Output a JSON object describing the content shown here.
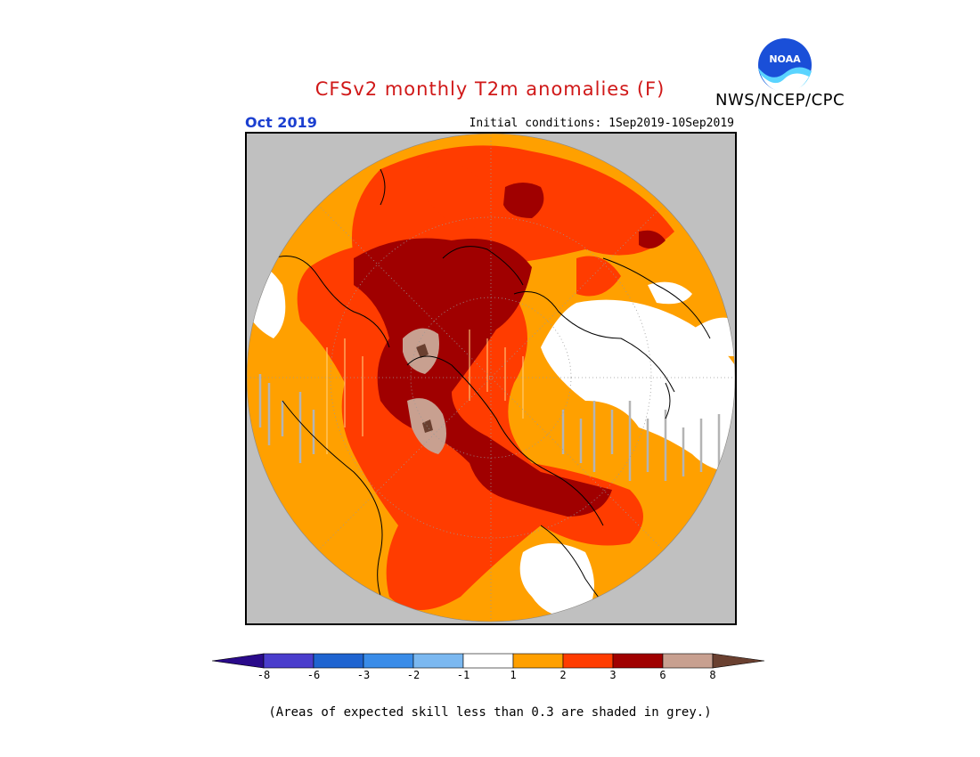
{
  "header": {
    "title": "CFSv2 monthly T2m anomalies (F)",
    "org": "NWS/NCEP/CPC",
    "logo_text": "NOAA",
    "month": "Oct 2019",
    "initial_conditions": "Initial conditions: 1Sep2019-10Sep2019"
  },
  "map": {
    "projection": "north-polar-stereographic",
    "field": "2m temperature anomaly",
    "units": "F",
    "low_skill_shading": "grey"
  },
  "legend": {
    "levels": [
      "-8",
      "-6",
      "-3",
      "-2",
      "-1",
      "1",
      "2",
      "3",
      "6",
      "8"
    ],
    "colors": [
      "#2a0a8a",
      "#4a3dcc",
      "#1f64d0",
      "#3a8ce8",
      "#7bb8f0",
      "#ffffff",
      "#ffa000",
      "#ff3c00",
      "#a00000",
      "#c8a090",
      "#6a4030"
    ],
    "note": "(Areas of expected skill less than 0.3 are shaded in grey.)"
  },
  "colors": {
    "title": "#d01818",
    "month": "#1b3fd0",
    "outside_domain": "#c0c0c0"
  }
}
